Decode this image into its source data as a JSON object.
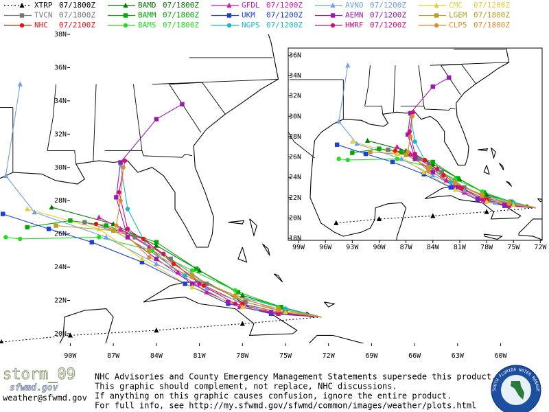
{
  "legend": [
    {
      "name": "XTRP",
      "time": "07/1800Z",
      "color": "#000000",
      "marker": "triangle",
      "dash": true,
      "lon": [
        -72.5,
        -78,
        -84,
        -90,
        -94.8
      ],
      "lat": [
        21.0,
        20.6,
        20.2,
        19.9,
        19.5
      ]
    },
    {
      "name": "TVCN",
      "time": "07/1800Z",
      "color": "#777777",
      "marker": "square",
      "lon": [
        -72.5,
        -75,
        -77.8,
        -80.5,
        -83,
        -85.5,
        -89
      ],
      "lat": [
        21.0,
        21.3,
        21.9,
        23.0,
        24.5,
        25.8,
        26.7
      ]
    },
    {
      "name": "NHC",
      "time": "07/2100Z",
      "color": "#ee1111",
      "marker": "circle",
      "lon": [
        -72.5,
        -75.5,
        -78,
        -80.7,
        -82.8,
        -84.9,
        -88.2
      ],
      "lat": [
        21.0,
        21.3,
        21.8,
        22.9,
        24.2,
        25.7,
        26.6
      ]
    },
    {
      "name": "BAMD",
      "time": "07/1800Z",
      "color": "#007700",
      "marker": "triangle",
      "lon": [
        -72.5,
        -75,
        -78,
        -81,
        -84,
        -87,
        -91.3
      ],
      "lat": [
        21.0,
        21.5,
        22.3,
        23.8,
        25.3,
        26.6,
        27.6
      ]
    },
    {
      "name": "BAMM",
      "time": "07/1800Z",
      "color": "#00aa00",
      "marker": "square",
      "lon": [
        -72.5,
        -75.3,
        -78.3,
        -81.2,
        -84,
        -87.5,
        -90,
        -93
      ],
      "lat": [
        21.0,
        21.6,
        22.5,
        23.9,
        25.5,
        26.5,
        26.8,
        26.4
      ]
    },
    {
      "name": "BAMS",
      "time": "07/1800Z",
      "color": "#22dd22",
      "marker": "circle",
      "lon": [
        -72.5,
        -75.5,
        -78.5,
        -81.5,
        -84.3,
        -88,
        -93.5,
        -94.5
      ],
      "lat": [
        21.0,
        21.6,
        22.6,
        23.8,
        25.0,
        25.8,
        25.7,
        25.8
      ]
    },
    {
      "name": "GFDL",
      "time": "07/1200Z",
      "color": "#dd11aa",
      "marker": "triangle",
      "lon": [
        -72.5,
        -75.5,
        -78.2,
        -80.5,
        -82.5,
        -84.5,
        -86.5,
        -88
      ],
      "lat": [
        21.0,
        21.2,
        21.6,
        22.5,
        23.7,
        25.2,
        26.3,
        27.0
      ]
    },
    {
      "name": "UKM",
      "time": "07/1200Z",
      "color": "#1a3fdc",
      "marker": "square",
      "lon": [
        -72.5,
        -76,
        -79,
        -82,
        -85,
        -88.5,
        -91.5,
        -94.7
      ],
      "lat": [
        21.0,
        21.2,
        21.8,
        23.0,
        24.3,
        25.5,
        26.3,
        27.2
      ]
    },
    {
      "name": "NGPS",
      "time": "07/1200Z",
      "color": "#1bb8c8",
      "marker": "circle",
      "lon": [
        -72.5,
        -75,
        -78.5,
        -82,
        -84.5,
        -86,
        -86.5
      ],
      "lat": [
        21.0,
        21.5,
        22.3,
        23.5,
        25.0,
        27.5,
        30.2
      ]
    },
    {
      "name": "AVNO",
      "time": "07/1200Z",
      "color": "#6f9fe6",
      "marker": "triangle",
      "lon": [
        -72.5,
        -77,
        -80.5,
        -84,
        -87.5,
        -92.5,
        -94.5,
        -93.5
      ],
      "lat": [
        21.0,
        21.5,
        22.7,
        24.2,
        25.8,
        27.3,
        29.5,
        35.0
      ]
    },
    {
      "name": "AEMN",
      "time": "07/1200Z",
      "color": "#9a1ab0",
      "marker": "square",
      "lon": [
        -72.5,
        -76,
        -79,
        -81.5,
        -84,
        -86,
        -86.8,
        -86.5,
        -84,
        -82.2
      ],
      "lat": [
        21.0,
        21.3,
        21.9,
        23.0,
        24.5,
        25.8,
        28.2,
        30.3,
        32.9,
        33.8
      ]
    },
    {
      "name": "HWRF",
      "time": "07/1200Z",
      "color": "#d0107a",
      "marker": "circle",
      "lon": [
        -72.5,
        -75.5,
        -78.5,
        -81,
        -83.5,
        -86,
        -86.6,
        -86.2
      ],
      "lat": [
        21.0,
        21.2,
        21.8,
        23.0,
        24.8,
        26.3,
        28.5,
        30.4
      ]
    },
    {
      "name": "CMC",
      "time": "07/1200Z",
      "color": "#e0d030",
      "marker": "triangle",
      "lon": [
        -72.5,
        -75,
        -78,
        -81.5,
        -85,
        -88,
        -93
      ],
      "lat": [
        21.0,
        21.3,
        21.6,
        22.8,
        24.5,
        26.3,
        27.5
      ]
    },
    {
      "name": "LGEM",
      "time": "07/1800Z",
      "color": "#b8a020",
      "marker": "square",
      "lon": [
        -72.5,
        -75.5,
        -78.5,
        -81.5,
        -84.5,
        -87,
        -91
      ],
      "lat": [
        21.0,
        21.5,
        22.2,
        23.5,
        25.0,
        26.2,
        26.5
      ]
    },
    {
      "name": "CLP5",
      "time": "07/1800Z",
      "color": "#e08a30",
      "marker": "circle",
      "lon": [
        -72.5,
        -75.5,
        -78.5,
        -81.5,
        -84.5,
        -86.8,
        -86.5,
        -86.3
      ],
      "lat": [
        21.0,
        21.4,
        22.3,
        23.4,
        24.6,
        26.5,
        28.0,
        30.0
      ]
    }
  ],
  "main_map": {
    "xlim": [
      -94.9,
      -59.5
    ],
    "ylim": [
      19.42,
      38
    ],
    "xticks": [
      {
        "value": -90,
        "label": "90W"
      },
      {
        "value": -87,
        "label": "87W"
      },
      {
        "value": -84,
        "label": "84W"
      },
      {
        "value": -81,
        "label": "81W"
      },
      {
        "value": -78,
        "label": "78W"
      },
      {
        "value": -75,
        "label": "75W"
      },
      {
        "value": -72,
        "label": "72W"
      },
      {
        "value": -69,
        "label": "69W"
      },
      {
        "value": -66,
        "label": "66W"
      },
      {
        "value": -63,
        "label": "63W"
      },
      {
        "value": -60,
        "label": "60W"
      }
    ],
    "yticks": [
      {
        "value": 20,
        "label": "20N"
      },
      {
        "value": 22,
        "label": "22N"
      },
      {
        "value": 24,
        "label": "24N"
      },
      {
        "value": 26,
        "label": "26N"
      },
      {
        "value": 28,
        "label": "28N"
      },
      {
        "value": 30,
        "label": "30N"
      },
      {
        "value": 32,
        "label": "32N"
      },
      {
        "value": 34,
        "label": "34N"
      },
      {
        "value": 36,
        "label": "36N"
      },
      {
        "value": 38,
        "label": "38N"
      }
    ]
  },
  "inset_map": {
    "xlim": [
      -100.15,
      -71.8
    ],
    "ylim": [
      17.8,
      36.7
    ],
    "xticks": [
      {
        "value": -99,
        "label": "99W"
      },
      {
        "value": -96,
        "label": "96W"
      },
      {
        "value": -93,
        "label": "93W"
      },
      {
        "value": -90,
        "label": "90W"
      },
      {
        "value": -87,
        "label": "87W"
      },
      {
        "value": -84,
        "label": "84W"
      },
      {
        "value": -81,
        "label": "81W"
      },
      {
        "value": -78,
        "label": "78W"
      },
      {
        "value": -75,
        "label": "75W"
      },
      {
        "value": -72,
        "label": "72W"
      }
    ],
    "yticks": [
      {
        "value": 18,
        "label": "18N"
      },
      {
        "value": 20,
        "label": "20N"
      },
      {
        "value": 22,
        "label": "22N"
      },
      {
        "value": 24,
        "label": "24N"
      },
      {
        "value": 26,
        "label": "26N"
      },
      {
        "value": 28,
        "label": "28N"
      },
      {
        "value": 30,
        "label": "30N"
      },
      {
        "value": 32,
        "label": "32N"
      },
      {
        "value": 34,
        "label": "34N"
      },
      {
        "value": 36,
        "label": "36N"
      }
    ]
  },
  "footer": {
    "logo": "storm_09",
    "site": "sfwmd.gov",
    "email": "weather@sfwmd.gov",
    "lines": [
      "NHC Advisories and County Emergency Management Statements supersede this product.",
      "This graphic should complement, not replace, NHC discussions.",
      "If anything on this graphic causes confusion, ignore the entire product.",
      "For full info, see  http://my.sfwmd.gov/sfwmd/common/images/weather/plots.html"
    ],
    "emblem": "SOUTH FLORIDA WATER MANAGEMENT DISTRICT"
  }
}
